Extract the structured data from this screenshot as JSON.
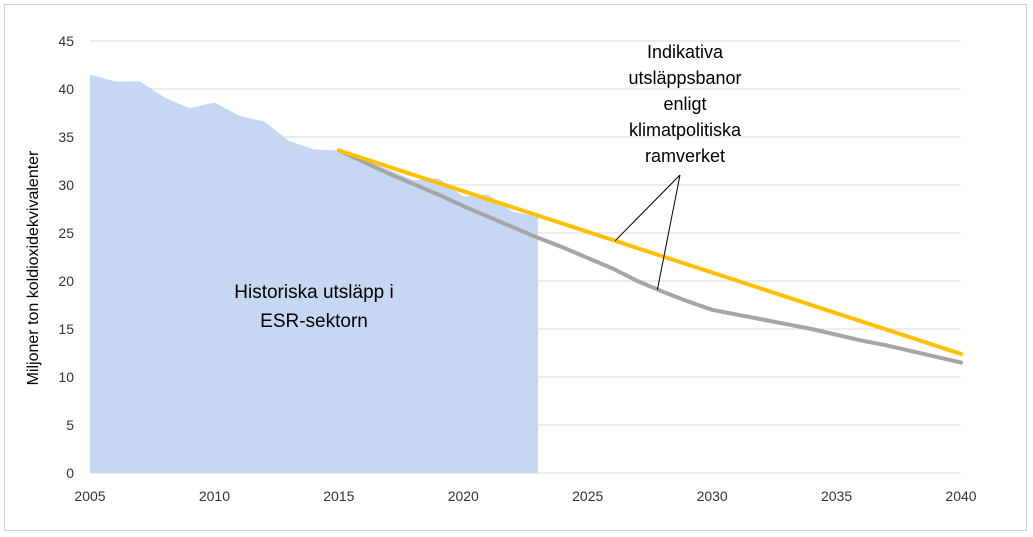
{
  "chart_data": {
    "type": "line",
    "title": "",
    "xlabel": "",
    "ylabel": "Miljoner ton koldioxidekvivalenter",
    "xlim": [
      2005,
      2040
    ],
    "ylim": [
      0,
      45
    ],
    "x_ticks": [
      2005,
      2010,
      2015,
      2020,
      2025,
      2030,
      2035,
      2040
    ],
    "y_ticks": [
      0,
      5,
      10,
      15,
      20,
      25,
      30,
      35,
      40,
      45
    ],
    "grid": "horizontal",
    "series": [
      {
        "kind": "area",
        "color": "#c5d7f2",
        "x": [
          2005,
          2006,
          2007,
          2008,
          2009,
          2010,
          2011,
          2012,
          2013,
          2014,
          2015,
          2016,
          2017,
          2018,
          2019,
          2020,
          2021,
          2022,
          2023
        ],
        "values": [
          41.5,
          40.8,
          40.8,
          39.1,
          38.0,
          38.6,
          37.2,
          36.6,
          34.6,
          33.7,
          33.6,
          32.6,
          31.6,
          30.5,
          30.7,
          28.8,
          29.0,
          27.2,
          26.7
        ]
      },
      {
        "kind": "line",
        "color": "#ffc000",
        "x": [
          2015,
          2040
        ],
        "values": [
          33.6,
          12.4
        ]
      },
      {
        "kind": "line",
        "color": "#a5a5a5",
        "x": [
          2015,
          2016,
          2017,
          2018,
          2019,
          2020,
          2021,
          2022,
          2023,
          2024,
          2025,
          2026,
          2027,
          2028,
          2029,
          2030,
          2031,
          2032,
          2033,
          2034,
          2035,
          2036,
          2037,
          2038,
          2039,
          2040
        ],
        "values": [
          33.6,
          32.4,
          31.2,
          30.1,
          29.0,
          27.8,
          26.7,
          25.6,
          24.5,
          23.5,
          22.4,
          21.3,
          20.0,
          18.9,
          17.9,
          17.0,
          16.5,
          16.0,
          15.5,
          15.0,
          14.4,
          13.8,
          13.3,
          12.7,
          12.1,
          11.5
        ]
      }
    ],
    "annotations": {
      "area_label": [
        "Historiska utsläpp i",
        "ESR-sektorn"
      ],
      "callout_label": [
        "Indikativa",
        "utsläppsbanor",
        "enligt",
        "klimatpolitiska",
        "ramverket"
      ]
    }
  }
}
